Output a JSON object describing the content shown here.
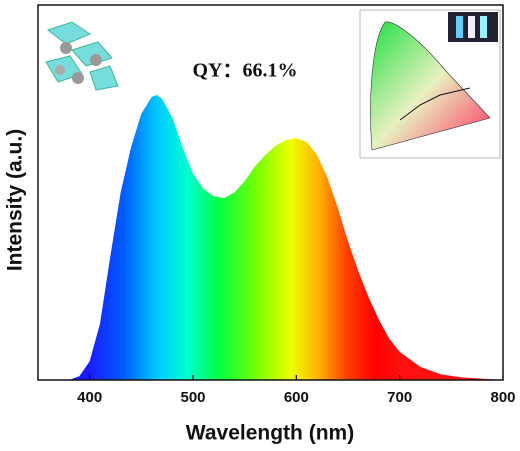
{
  "chart_data": {
    "type": "area",
    "annotations": [
      "QY：66.1%"
    ],
    "x_label": "Wavelength (nm)",
    "y_label": "Intensity (a.u.)",
    "x": [
      380,
      390,
      400,
      410,
      420,
      430,
      440,
      450,
      460,
      465,
      470,
      480,
      490,
      500,
      510,
      520,
      530,
      540,
      550,
      560,
      570,
      580,
      590,
      600,
      610,
      620,
      630,
      640,
      650,
      660,
      670,
      680,
      690,
      700,
      720,
      740,
      760,
      800
    ],
    "values": [
      0,
      0.01,
      0.05,
      0.15,
      0.33,
      0.5,
      0.62,
      0.71,
      0.755,
      0.76,
      0.75,
      0.7,
      0.62,
      0.55,
      0.51,
      0.49,
      0.485,
      0.5,
      0.53,
      0.57,
      0.6,
      0.625,
      0.64,
      0.645,
      0.635,
      0.6,
      0.54,
      0.46,
      0.37,
      0.29,
      0.22,
      0.16,
      0.11,
      0.075,
      0.035,
      0.015,
      0.007,
      0
    ],
    "xlim": [
      350,
      800
    ],
    "xticks": [
      400,
      500,
      600,
      700,
      800
    ],
    "ylim": [
      0,
      1
    ]
  }
}
